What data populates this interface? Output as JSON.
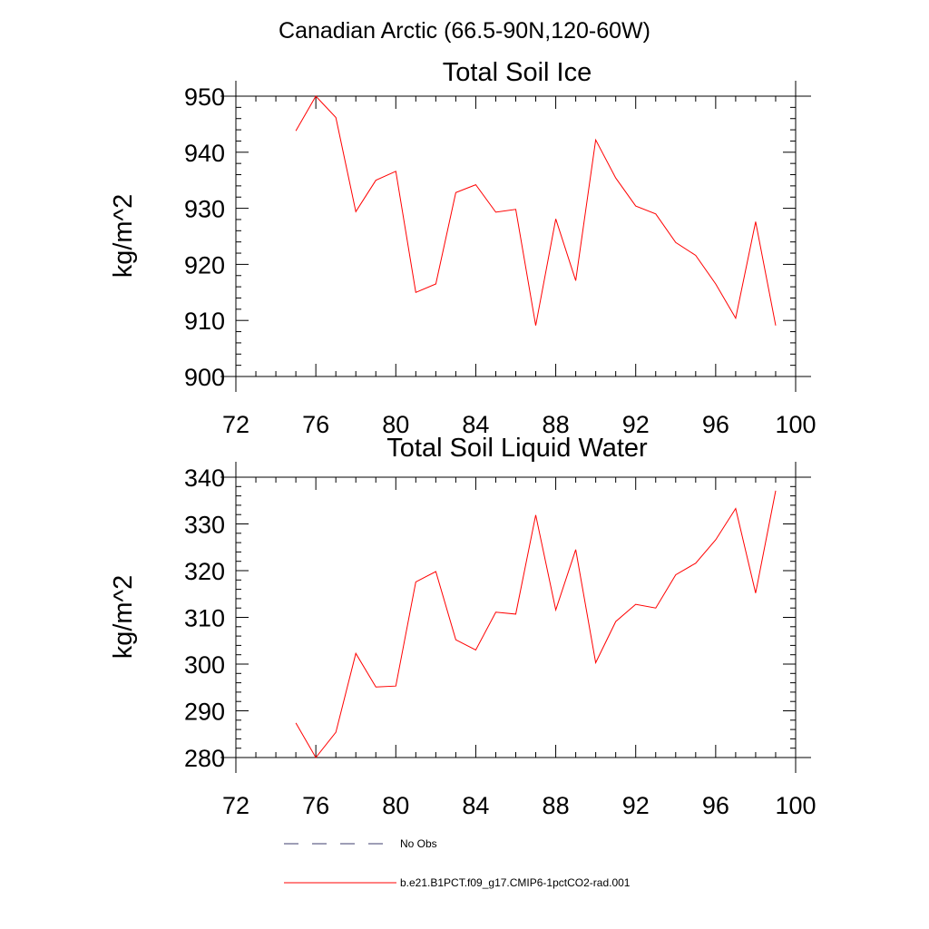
{
  "figure": {
    "suptitle": "Canadian Arctic (66.5-90N,120-60W)"
  },
  "chart_data": [
    {
      "type": "line",
      "title": "Total Soil Ice",
      "xlabel": "",
      "ylabel": "kg/m^2",
      "xlim": [
        72,
        100
      ],
      "ylim": [
        900,
        950
      ],
      "xticks": [
        72,
        76,
        80,
        84,
        88,
        92,
        96,
        100
      ],
      "yticks": [
        900,
        910,
        920,
        930,
        940,
        950
      ],
      "x": [
        75,
        76,
        77,
        78,
        79,
        80,
        81,
        82,
        83,
        84,
        85,
        86,
        87,
        88,
        89,
        90,
        91,
        92,
        93,
        94,
        95,
        96,
        97,
        98,
        99
      ],
      "series": [
        {
          "name": "b.e21.B1PCT.f09_g17.CMIP6-1pctCO2-rad.001",
          "color": "#ff0000",
          "values": [
            943.8,
            950.0,
            946.2,
            929.4,
            935.0,
            936.6,
            915.0,
            916.5,
            932.8,
            934.2,
            929.3,
            929.8,
            909.1,
            928.1,
            917.1,
            942.2,
            935.4,
            930.4,
            929.0,
            923.9,
            921.6,
            916.5,
            910.4,
            927.6,
            909.1
          ]
        }
      ]
    },
    {
      "type": "line",
      "title": "Total Soil Liquid Water",
      "xlabel": "",
      "ylabel": "kg/m^2",
      "xlim": [
        72,
        100
      ],
      "ylim": [
        280,
        340
      ],
      "xticks": [
        72,
        76,
        80,
        84,
        88,
        92,
        96,
        100
      ],
      "yticks": [
        280,
        290,
        300,
        310,
        320,
        330,
        340
      ],
      "x": [
        75,
        76,
        77,
        78,
        79,
        80,
        81,
        82,
        83,
        84,
        85,
        86,
        87,
        88,
        89,
        90,
        91,
        92,
        93,
        94,
        95,
        96,
        97,
        98,
        99
      ],
      "series": [
        {
          "name": "b.e21.B1PCT.f09_g17.CMIP6-1pctCO2-rad.001",
          "color": "#ff0000",
          "values": [
            287.4,
            280.0,
            285.4,
            302.3,
            295.1,
            295.3,
            317.6,
            319.8,
            305.2,
            303.0,
            311.1,
            310.7,
            331.9,
            311.6,
            324.5,
            300.3,
            309.1,
            312.8,
            312.0,
            319.1,
            321.6,
            326.6,
            333.3,
            315.2,
            337.1
          ]
        }
      ]
    }
  ],
  "legend": {
    "items": [
      {
        "label": "No Obs",
        "style": "dashed",
        "color": "#3c3c6e"
      },
      {
        "label": "b.e21.B1PCT.f09_g17.CMIP6-1pctCO2-rad.001",
        "style": "solid",
        "color": "#ff0000"
      }
    ]
  }
}
